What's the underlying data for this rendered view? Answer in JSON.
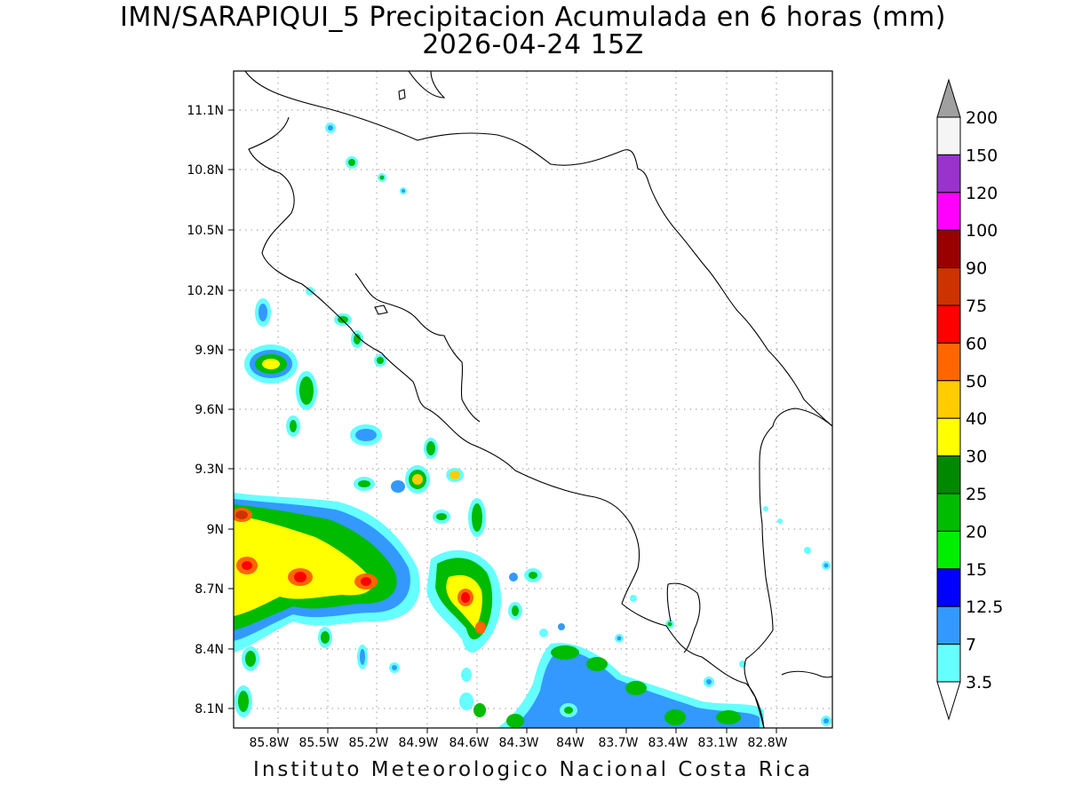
{
  "header": {
    "title": "IMN/SARAPIQUI_5 Precipitacion Acumulada en 6 horas (mm)",
    "valid_time": "2026-04-24 15Z"
  },
  "footer": {
    "credit": "Instituto Meteorologico Nacional Costa Rica"
  },
  "map": {
    "lat_labels": [
      "11.1N",
      "10.8N",
      "10.5N",
      "10.2N",
      "9.9N",
      "9.6N",
      "9.3N",
      "9N",
      "8.7N",
      "8.4N",
      "8.1N"
    ],
    "lon_labels": [
      "85.8W",
      "85.5W",
      "85.2W",
      "84.9W",
      "84.6W",
      "84.3W",
      "84W",
      "83.7W",
      "83.4W",
      "83.1W",
      "82.8W"
    ],
    "grid": "dotted"
  },
  "colorbar": {
    "labels": [
      "200",
      "150",
      "120",
      "100",
      "90",
      "75",
      "60",
      "50",
      "40",
      "30",
      "25",
      "20",
      "15",
      "12.5",
      "7",
      "3.5"
    ],
    "colors": [
      "#f5f5f5",
      "#9933cc",
      "#ff00ff",
      "#990000",
      "#cc3300",
      "#ff0000",
      "#ff6600",
      "#ffcc00",
      "#ffff00",
      "#008800",
      "#00bb00",
      "#00ee00",
      "#0000ff",
      "#3399ff",
      "#66ffff"
    ],
    "over_color": "#a0a0a0",
    "under_color": "#ffffff"
  }
}
